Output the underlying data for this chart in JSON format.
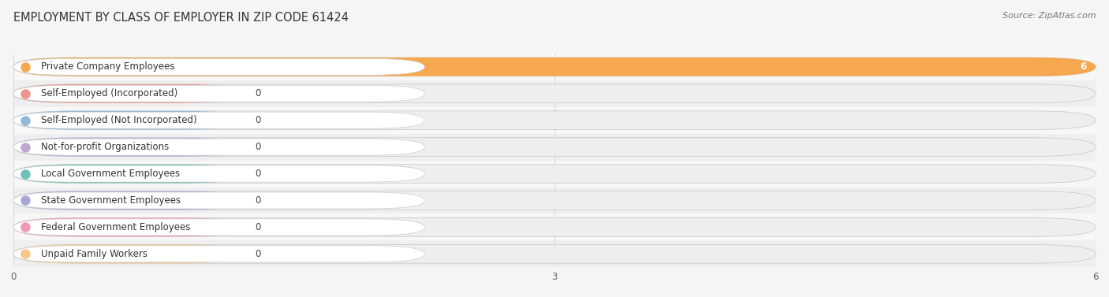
{
  "title": "Employment by Class of Employer in Zip Code 61424",
  "source": "Source: ZipAtlas.com",
  "categories": [
    "Private Company Employees",
    "Self-Employed (Incorporated)",
    "Self-Employed (Not Incorporated)",
    "Not-for-profit Organizations",
    "Local Government Employees",
    "State Government Employees",
    "Federal Government Employees",
    "Unpaid Family Workers"
  ],
  "values": [
    6,
    0,
    0,
    0,
    0,
    0,
    0,
    0
  ],
  "bar_colors": [
    "#f5a84e",
    "#f09490",
    "#90b8d8",
    "#c0a8d4",
    "#6ec0b8",
    "#a8a8d8",
    "#f098b4",
    "#f5c88a"
  ],
  "xlim": [
    0,
    6
  ],
  "xticks": [
    0,
    3,
    6
  ],
  "bar_height": 0.7,
  "row_colors": [
    "#f7f7f7",
    "#efefef"
  ],
  "background_color": "#f5f5f5",
  "title_fontsize": 10.5,
  "label_fontsize": 8.5,
  "value_fontsize": 8.5,
  "grid_color": "#d8d8d8",
  "source_fontsize": 8
}
